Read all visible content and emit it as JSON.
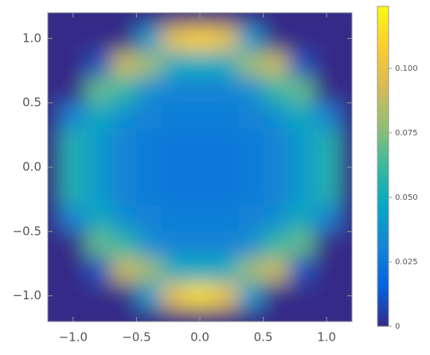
{
  "chart_data": {
    "type": "heatmap",
    "x": [
      -1.2,
      -1.0,
      -0.8,
      -0.6,
      -0.4,
      -0.2,
      0,
      0.2,
      0.4,
      0.6,
      0.8,
      1.0,
      1.2
    ],
    "y": [
      1.2,
      1.0,
      0.8,
      0.6,
      0.4,
      0.2,
      0,
      -0.2,
      -0.4,
      -0.6,
      -0.8,
      -1.0,
      -1.2
    ],
    "z": [
      [
        0,
        0,
        0,
        0,
        0,
        0,
        0,
        0,
        0,
        0,
        0,
        0,
        0
      ],
      [
        0,
        0,
        0,
        0,
        0.04,
        0.1,
        0.11,
        0.1,
        0.04,
        0,
        0,
        0,
        0
      ],
      [
        0,
        0,
        0.01,
        0.09,
        0.08,
        0.05,
        0.05,
        0.05,
        0.08,
        0.09,
        0.01,
        0,
        0
      ],
      [
        0,
        0,
        0.07,
        0.06,
        0.035,
        0.03,
        0.03,
        0.03,
        0.035,
        0.06,
        0.07,
        0,
        0
      ],
      [
        0,
        0.03,
        0.05,
        0.035,
        0.03,
        0.028,
        0.028,
        0.028,
        0.03,
        0.035,
        0.05,
        0.03,
        0
      ],
      [
        0,
        0.055,
        0.04,
        0.03,
        0.027,
        0.025,
        0.025,
        0.025,
        0.027,
        0.03,
        0.04,
        0.055,
        0
      ],
      [
        0,
        0.055,
        0.04,
        0.03,
        0.027,
        0.025,
        0.025,
        0.025,
        0.027,
        0.03,
        0.04,
        0.055,
        0
      ],
      [
        0,
        0.055,
        0.04,
        0.03,
        0.027,
        0.025,
        0.025,
        0.025,
        0.027,
        0.03,
        0.04,
        0.055,
        0
      ],
      [
        0,
        0.03,
        0.05,
        0.035,
        0.03,
        0.028,
        0.028,
        0.028,
        0.03,
        0.035,
        0.05,
        0.03,
        0
      ],
      [
        0,
        0,
        0.07,
        0.06,
        0.035,
        0.03,
        0.03,
        0.03,
        0.035,
        0.06,
        0.07,
        0,
        0
      ],
      [
        0,
        0,
        0.01,
        0.09,
        0.08,
        0.05,
        0.05,
        0.05,
        0.08,
        0.09,
        0.01,
        0,
        0
      ],
      [
        0,
        0,
        0,
        0,
        0.04,
        0.1,
        0.115,
        0.1,
        0.04,
        0,
        0,
        0,
        0
      ],
      [
        0,
        0,
        0,
        0,
        0,
        0,
        0,
        0,
        0,
        0,
        0,
        0,
        0
      ]
    ],
    "xlim": [
      -1.2,
      1.2
    ],
    "ylim": [
      -1.2,
      1.2
    ],
    "xticks": [
      {
        "value": -1.0,
        "label": "−1.0"
      },
      {
        "value": -0.5,
        "label": "−0.5"
      },
      {
        "value": 0,
        "label": "0.0"
      },
      0.5,
      {
        "value": 1.0,
        "label": "1.0"
      }
    ],
    "yticks": [
      {
        "value": -1.0,
        "label": "−1.0"
      },
      {
        "value": -0.5,
        "label": "−0.5"
      },
      {
        "value": 0,
        "label": "0.0"
      },
      0.5,
      {
        "value": 1.0,
        "label": "1.0"
      }
    ],
    "zlim": [
      0,
      0.124
    ],
    "zticks": [
      0,
      0.025,
      {
        "value": 0.05,
        "label": "0.050"
      },
      0.075,
      {
        "value": 0.1,
        "label": "0.100"
      }
    ],
    "colormap": [
      "#352a87",
      "#0363e1",
      "#1485d4",
      "#06a7c6",
      "#38b99e",
      "#92bf73",
      "#d9ba56",
      "#fcce2e",
      "#f9fb0e"
    ]
  }
}
